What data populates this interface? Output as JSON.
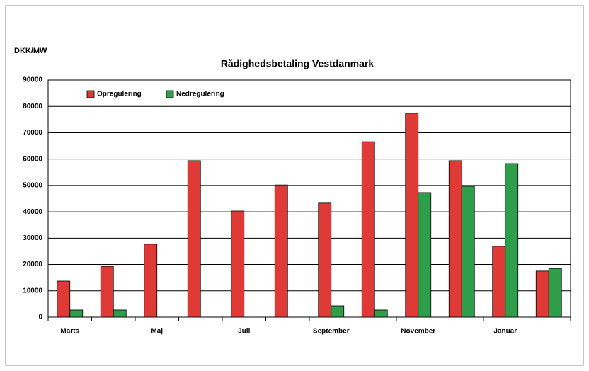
{
  "chart_data": {
    "type": "bar",
    "title": "Rådighedsbetaling Vestdanmark",
    "y_label": "DKK/MW",
    "categories": [
      "Marts",
      null,
      "Maj",
      null,
      "Juli",
      null,
      "September",
      null,
      "November",
      null,
      "Januar",
      null
    ],
    "series": [
      {
        "name": "Opregulering",
        "color": "#e03a36",
        "values": [
          13700,
          19300,
          27700,
          59400,
          40300,
          50200,
          43300,
          66600,
          77400,
          59400,
          26900,
          17500
        ]
      },
      {
        "name": "Nedregulering",
        "color": "#2e9e4a",
        "values": [
          2700,
          2700,
          0,
          0,
          0,
          0,
          4300,
          2700,
          47300,
          49700,
          58300,
          18500
        ]
      }
    ],
    "ylim": [
      0,
      90000
    ],
    "yticks": [
      0,
      10000,
      20000,
      30000,
      40000,
      50000,
      60000,
      70000,
      80000,
      90000
    ],
    "grid": true,
    "legend": "top-left"
  }
}
